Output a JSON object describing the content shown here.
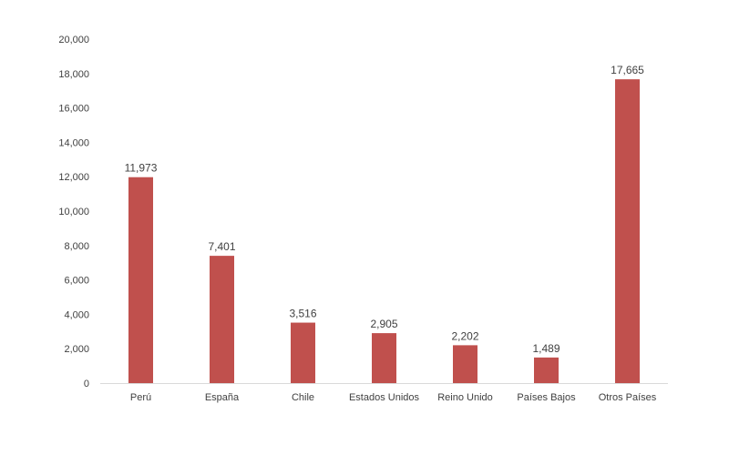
{
  "chart_data": {
    "type": "bar",
    "categories": [
      "Perú",
      "España",
      "Chile",
      "Estados Unidos",
      "Reino Unido",
      "Países Bajos",
      "Otros Países"
    ],
    "values": [
      11973,
      7401,
      3516,
      2905,
      2202,
      1489,
      17665
    ],
    "value_labels": [
      "11,973",
      "7,401",
      "3,516",
      "2,905",
      "2,202",
      "1,489",
      "17,665"
    ],
    "ylim": [
      0,
      20000
    ],
    "y_ticks": [
      0,
      2000,
      4000,
      6000,
      8000,
      10000,
      12000,
      14000,
      16000,
      18000,
      20000
    ],
    "y_tick_labels": [
      "0",
      "2,000",
      "4,000",
      "6,000",
      "8,000",
      "10,000",
      "12,000",
      "14,000",
      "16,000",
      "18,000",
      "20,000"
    ],
    "grid": false,
    "legend": "none",
    "bar_color": "#C0504D",
    "axis_color": "#D9D9D9",
    "text_color": "#404040"
  }
}
